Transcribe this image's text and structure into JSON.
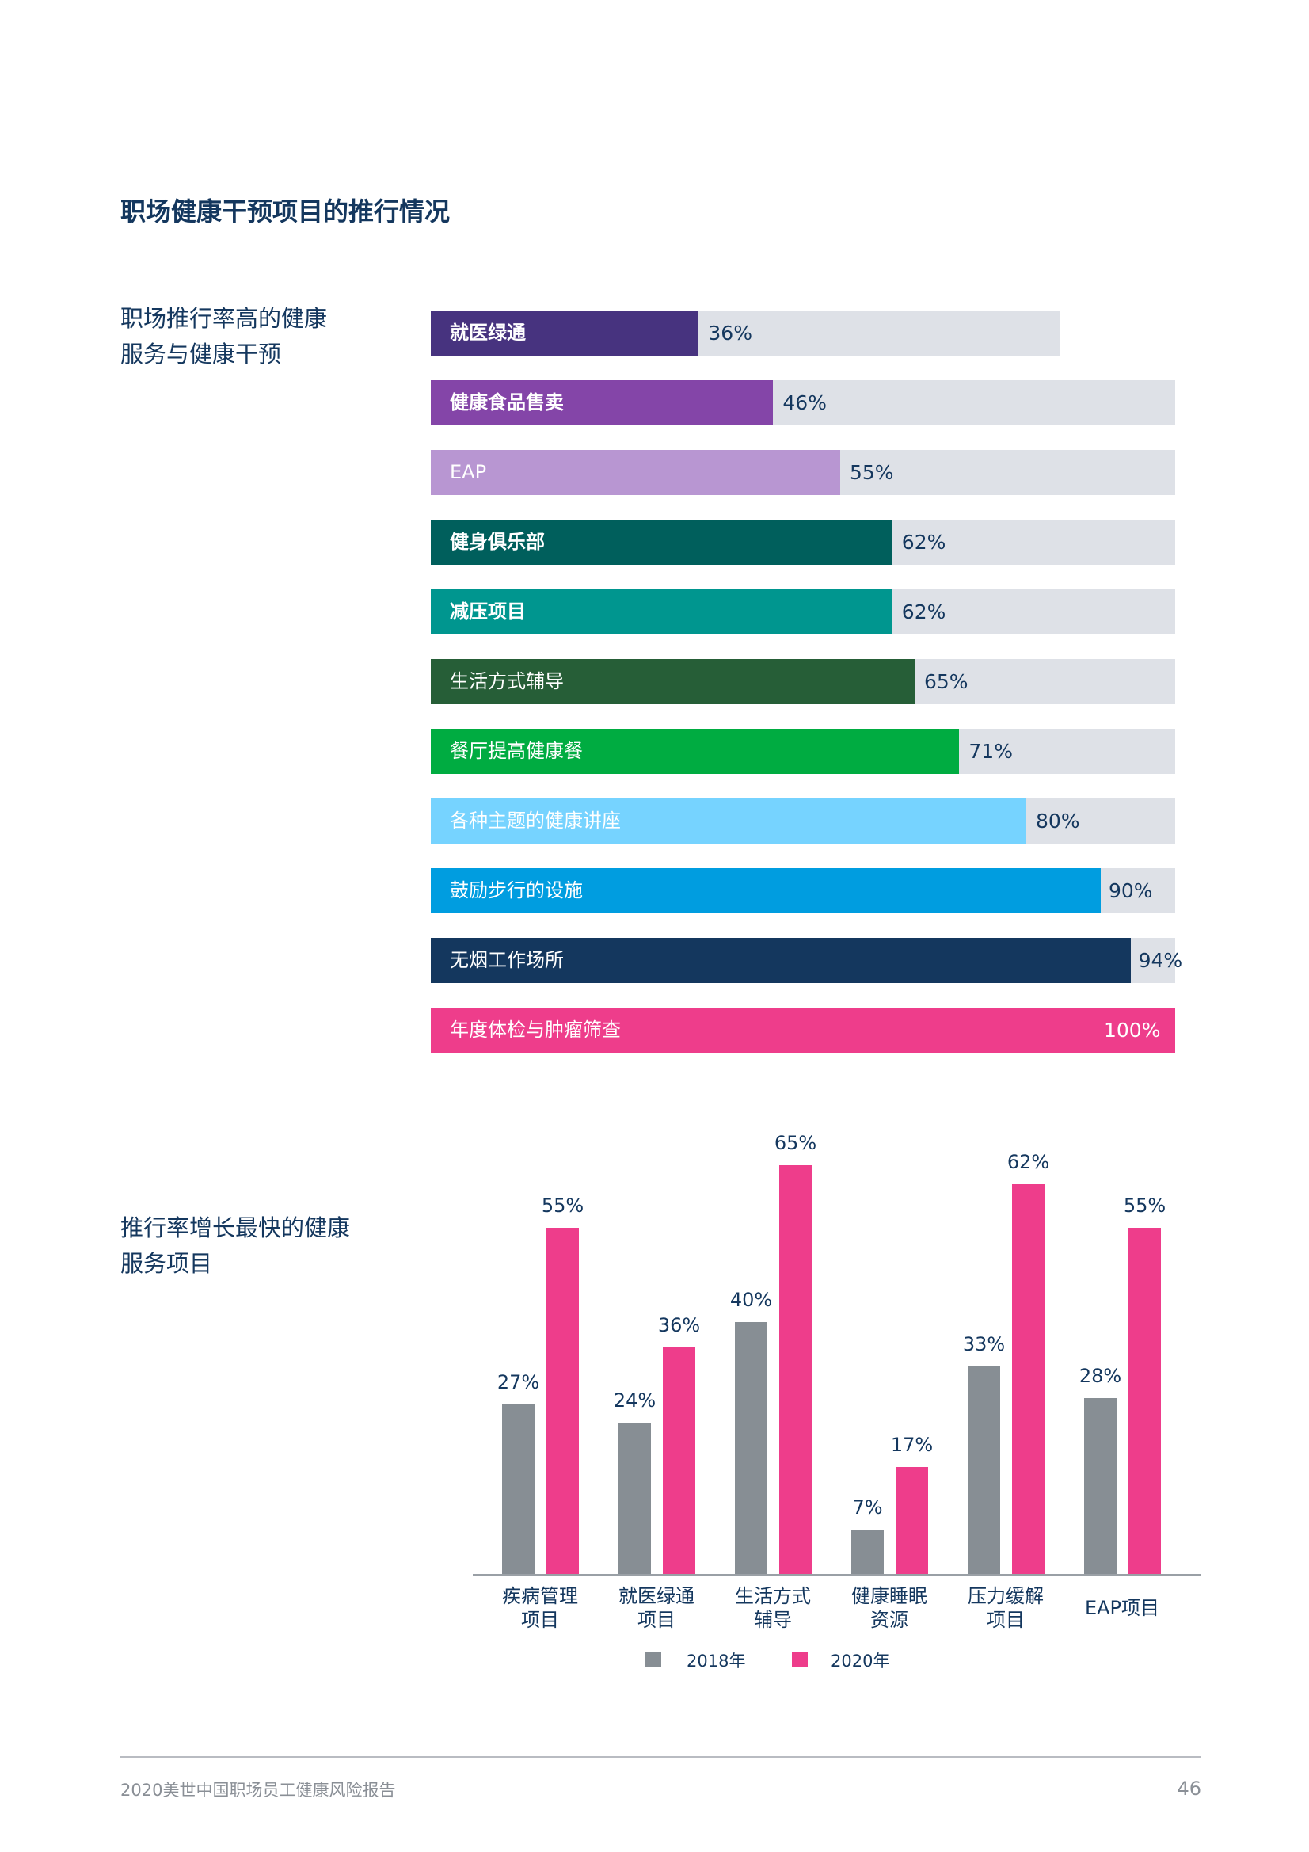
{
  "title": "职场健康干预项目的推行情况",
  "colors": {
    "text": "#14375e",
    "track": "#dee1e7",
    "series_2018": "#878e94",
    "series_2020": "#ee3d8b"
  },
  "chart_data": [
    {
      "type": "bar",
      "orientation": "horizontal",
      "section_label": [
        "职场推行率高的健康",
        "服务与健康干预"
      ],
      "unit": "%",
      "xlim": [
        0,
        100
      ],
      "grid": false,
      "categories": [
        "就医绿通",
        "健康食品售卖",
        "EAP",
        "健身俱乐部",
        "减压项目",
        "生活方式辅导",
        "餐厅提高健康餐",
        "各种主题的健康讲座",
        "鼓励步行的设施",
        "无烟工作场所",
        "年度体检与肿瘤筛查"
      ],
      "values": [
        36,
        46,
        55,
        62,
        62,
        65,
        71,
        80,
        90,
        94,
        100
      ],
      "value_labels": [
        "36%",
        "46%",
        "55%",
        "62%",
        "62%",
        "65%",
        "71%",
        "80%",
        "90%",
        "94%",
        "100%"
      ],
      "bold_labels": [
        true,
        true,
        false,
        true,
        true,
        false,
        false,
        false,
        false,
        false,
        false
      ],
      "bar_colors": [
        "#47337f",
        "#8445a8",
        "#b896d2",
        "#005f5c",
        "#00968f",
        "#265e37",
        "#00ac41",
        "#76d3ff",
        "#009de0",
        "#14375e",
        "#ee3d8b"
      ]
    },
    {
      "type": "bar",
      "orientation": "vertical",
      "section_label": [
        "推行率增长最快的健康",
        "服务项目"
      ],
      "unit": "%",
      "ylim": [
        0,
        65
      ],
      "grid": false,
      "legend_placement": "bottom",
      "categories": [
        [
          "疾病管理",
          "项目"
        ],
        [
          "就医绿通",
          "项目"
        ],
        [
          "生活方式",
          "辅导"
        ],
        [
          "健康睡眠",
          "资源"
        ],
        [
          "压力缓解",
          "项目"
        ],
        [
          "EAP项目"
        ]
      ],
      "series": [
        {
          "name": "2018年",
          "color": "#878e94",
          "values": [
            27,
            24,
            40,
            7,
            33,
            28
          ],
          "labels": [
            "27%",
            "24%",
            "40%",
            "7%",
            "33%",
            "28%"
          ]
        },
        {
          "name": "2020年",
          "color": "#ee3d8b",
          "values": [
            55,
            36,
            65,
            17,
            62,
            55
          ],
          "labels": [
            "55%",
            "36%",
            "65%",
            "17%",
            "62%",
            "55%"
          ]
        }
      ]
    }
  ],
  "footer": {
    "report_name": "2020美世中国职场员工健康风险报告",
    "page_number": "46"
  }
}
